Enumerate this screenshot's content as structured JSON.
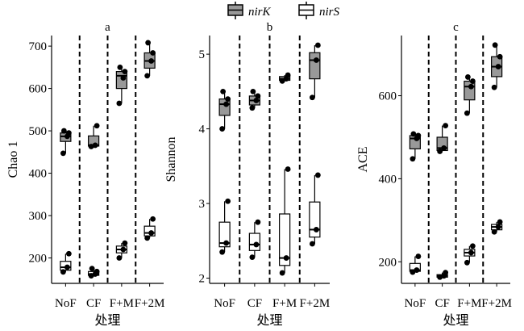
{
  "legend": {
    "items": [
      {
        "label": "nirK",
        "fill": "#999999"
      },
      {
        "label": "nirS",
        "fill": "#ffffff"
      }
    ]
  },
  "chart_data": [
    {
      "type": "box",
      "panel_title": "a",
      "ylabel": "Chao 1",
      "xlabel": "处理",
      "ylim": [
        140,
        725
      ],
      "yticks": [
        200,
        300,
        400,
        500,
        600,
        700
      ],
      "categories": [
        "NoF",
        "CF",
        "F+M",
        "F+2M"
      ],
      "series": [
        {
          "name": "nirK",
          "fill": "#999999",
          "boxes": [
            {
              "min": 447,
              "q1": 475,
              "median": 487,
              "q3": 495,
              "max": 500,
              "points": [
                447,
                487,
                495,
                500
              ]
            },
            {
              "min": 463,
              "q1": 464,
              "median": 466,
              "q3": 488,
              "max": 512,
              "points": [
                463,
                466,
                512
              ]
            },
            {
              "min": 565,
              "q1": 600,
              "median": 630,
              "q3": 640,
              "max": 650,
              "points": [
                565,
                625,
                640,
                650
              ]
            },
            {
              "min": 630,
              "q1": 648,
              "median": 665,
              "q3": 684,
              "max": 708,
              "points": [
                630,
                665,
                684,
                708
              ]
            }
          ]
        },
        {
          "name": "nirS",
          "fill": "#ffffff",
          "boxes": [
            {
              "min": 167,
              "q1": 171,
              "median": 178,
              "q3": 192,
              "max": 210,
              "points": [
                167,
                178,
                210
              ]
            },
            {
              "min": 158,
              "q1": 159,
              "median": 162,
              "q3": 168,
              "max": 175,
              "points": [
                158,
                162,
                168,
                175
              ]
            },
            {
              "min": 200,
              "q1": 212,
              "median": 220,
              "q3": 228,
              "max": 235,
              "points": [
                200,
                220,
                235
              ]
            },
            {
              "min": 247,
              "q1": 252,
              "median": 259,
              "q3": 275,
              "max": 292,
              "points": [
                247,
                259,
                292
              ]
            }
          ]
        }
      ]
    },
    {
      "type": "box",
      "panel_title": "b",
      "ylabel": "Shannon",
      "xlabel": "处理",
      "ylim": [
        1.93,
        5.25
      ],
      "yticks": [
        2,
        3,
        4,
        5
      ],
      "categories": [
        "NoF",
        "CF",
        "F+M",
        "F+2M"
      ],
      "series": [
        {
          "name": "nirK",
          "fill": "#999999",
          "boxes": [
            {
              "min": 4.0,
              "q1": 4.18,
              "median": 4.33,
              "q3": 4.4,
              "max": 4.5,
              "points": [
                4.0,
                4.33,
                4.4,
                4.5
              ]
            },
            {
              "min": 4.28,
              "q1": 4.32,
              "median": 4.38,
              "q3": 4.44,
              "max": 4.5,
              "points": [
                4.28,
                4.38,
                4.44,
                4.5
              ]
            },
            {
              "min": 4.64,
              "q1": 4.65,
              "median": 4.67,
              "q3": 4.7,
              "max": 4.72,
              "points": [
                4.64,
                4.67,
                4.72
              ]
            },
            {
              "min": 4.42,
              "q1": 4.67,
              "median": 4.92,
              "q3": 5.02,
              "max": 5.12,
              "points": [
                4.42,
                4.92,
                5.12
              ]
            }
          ]
        },
        {
          "name": "nirS",
          "fill": "#ffffff",
          "boxes": [
            {
              "min": 2.35,
              "q1": 2.42,
              "median": 2.47,
              "q3": 2.75,
              "max": 3.03,
              "points": [
                2.35,
                2.47,
                3.03
              ]
            },
            {
              "min": 2.28,
              "q1": 2.37,
              "median": 2.45,
              "q3": 2.6,
              "max": 2.75,
              "points": [
                2.28,
                2.45,
                2.75
              ]
            },
            {
              "min": 2.07,
              "q1": 2.17,
              "median": 2.27,
              "q3": 2.86,
              "max": 3.46,
              "points": [
                2.07,
                2.27,
                3.46
              ]
            },
            {
              "min": 2.46,
              "q1": 2.55,
              "median": 2.65,
              "q3": 3.02,
              "max": 3.38,
              "points": [
                2.46,
                2.65,
                3.38
              ]
            }
          ]
        }
      ]
    },
    {
      "type": "box",
      "panel_title": "c",
      "ylabel": "ACE",
      "xlabel": "处理",
      "ylim": [
        148,
        745
      ],
      "yticks": [
        200,
        400,
        600
      ],
      "categories": [
        "NoF",
        "CF",
        "F+M",
        "F+2M"
      ],
      "series": [
        {
          "name": "nirK",
          "fill": "#999999",
          "boxes": [
            {
              "min": 448,
              "q1": 472,
              "median": 497,
              "q3": 504,
              "max": 508,
              "points": [
                448,
                497,
                504,
                508
              ]
            },
            {
              "min": 466,
              "q1": 468,
              "median": 474,
              "q3": 500,
              "max": 528,
              "points": [
                466,
                474,
                528
              ]
            },
            {
              "min": 558,
              "q1": 590,
              "median": 622,
              "q3": 635,
              "max": 645,
              "points": [
                558,
                622,
                635,
                645
              ]
            },
            {
              "min": 620,
              "q1": 646,
              "median": 670,
              "q3": 694,
              "max": 722,
              "points": [
                620,
                670,
                694,
                722
              ]
            }
          ]
        },
        {
          "name": "nirS",
          "fill": "#ffffff",
          "boxes": [
            {
              "min": 175,
              "q1": 177,
              "median": 180,
              "q3": 196,
              "max": 213,
              "points": [
                175,
                180,
                213
              ]
            },
            {
              "min": 163,
              "q1": 163,
              "median": 166,
              "q3": 169,
              "max": 174,
              "points": [
                163,
                166,
                174
              ]
            },
            {
              "min": 198,
              "q1": 214,
              "median": 222,
              "q3": 230,
              "max": 238,
              "points": [
                198,
                222,
                238
              ]
            },
            {
              "min": 272,
              "q1": 277,
              "median": 284,
              "q3": 290,
              "max": 296,
              "points": [
                272,
                284,
                296
              ]
            }
          ]
        }
      ]
    }
  ]
}
